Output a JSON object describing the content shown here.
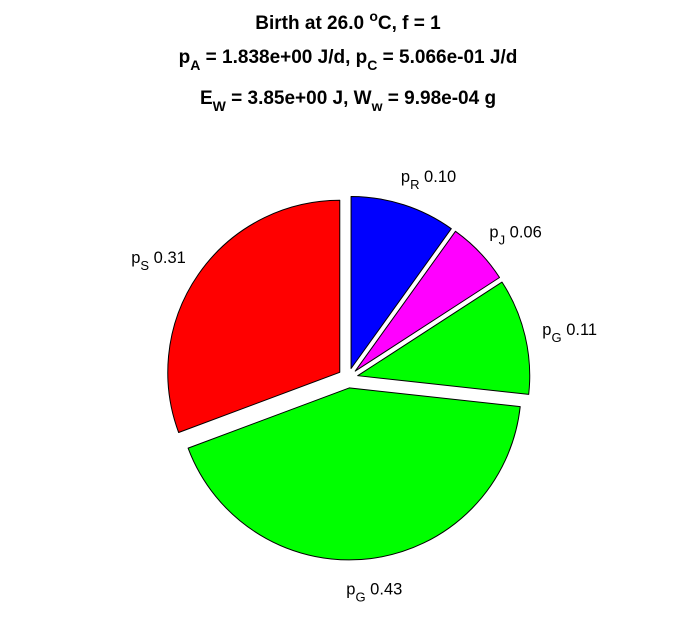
{
  "chart_data": {
    "type": "pie",
    "title_lines": [
      {
        "segments": [
          {
            "t": "Birth at 26.0 "
          },
          {
            "t": "o",
            "sup": true
          },
          {
            "t": "C, f = 1"
          }
        ]
      },
      {
        "segments": [
          {
            "t": "p"
          },
          {
            "t": "A",
            "sub": true
          },
          {
            "t": " = 1.838e+00 J/d, p"
          },
          {
            "t": "C",
            "sub": true
          },
          {
            "t": " = 5.066e-01 J/d"
          }
        ]
      },
      {
        "segments": [
          {
            "t": "E"
          },
          {
            "t": "W",
            "sub": true
          },
          {
            "t": " = 3.85e+00 J, W"
          },
          {
            "t": "w",
            "sub": true
          },
          {
            "t": " = 9.98e-04 g"
          }
        ]
      }
    ],
    "slices": [
      {
        "sym": "p",
        "sub": "R",
        "value": 0.1,
        "label": "0.10",
        "color": "#0000ff"
      },
      {
        "sym": "p",
        "sub": "J",
        "value": 0.06,
        "label": "0.06",
        "color": "#ff00ff"
      },
      {
        "sym": "p",
        "sub": "G",
        "value": 0.11,
        "label": "0.11",
        "color": "#00ff00"
      },
      {
        "sym": "p",
        "sub": "G",
        "value": 0.43,
        "label": "0.43",
        "color": "#00ff00"
      },
      {
        "sym": "p",
        "sub": "S",
        "value": 0.31,
        "label": "0.31",
        "color": "#ff0000"
      }
    ],
    "start": "12 o'clock",
    "direction": "clockwise",
    "exploded": true
  }
}
